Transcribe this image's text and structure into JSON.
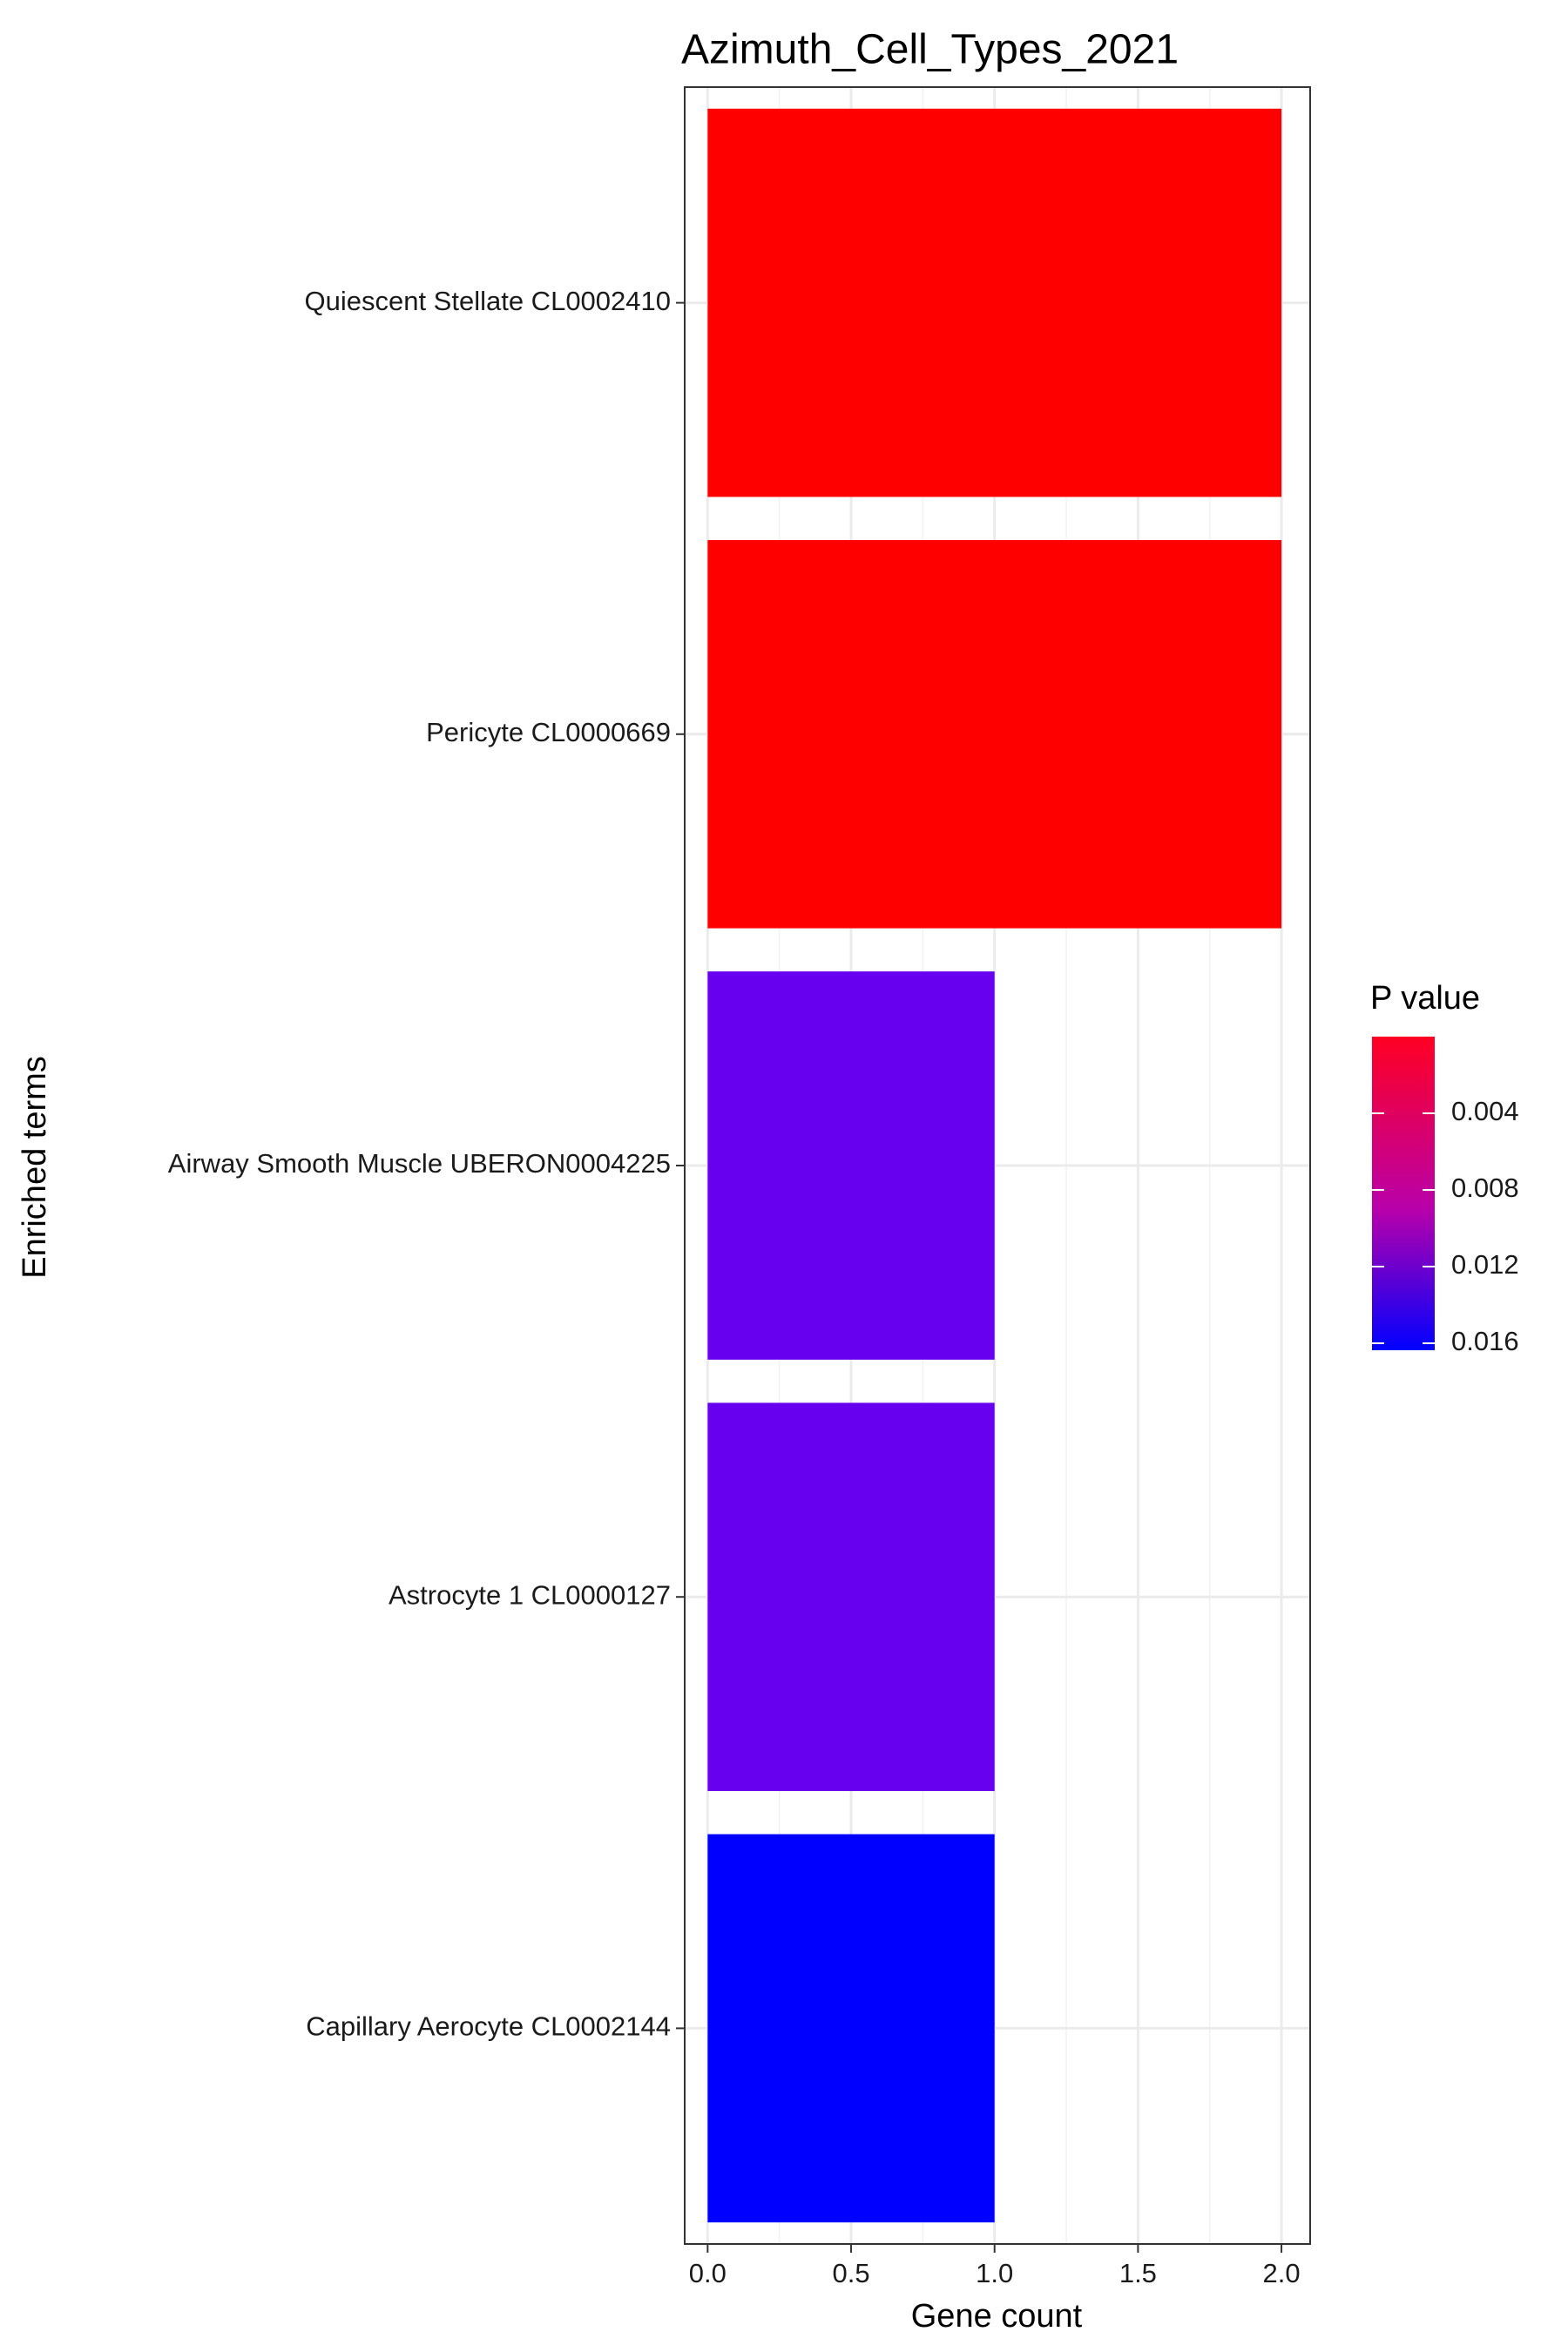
{
  "chart_data": {
    "type": "bar",
    "orientation": "horizontal",
    "title": "Azimuth_Cell_Types_2021",
    "xlabel": "Gene count",
    "ylabel": "Enriched terms",
    "xlim": [
      -0.08,
      2.1
    ],
    "xticks": [
      "0.0",
      "0.5",
      "1.0",
      "1.5",
      "2.0"
    ],
    "grid": true,
    "categories": [
      "Quiescent Stellate CL0002410",
      "Pericyte CL0000669",
      "Airway Smooth Muscle UBERON0004225",
      "Astrocyte 1 CL0000127",
      "Capillary Aerocyte CL0002144"
    ],
    "values": [
      2,
      2,
      1,
      1,
      1
    ],
    "bar_colors": [
      "#FF0000",
      "#FF0000",
      "#6600EE",
      "#6600EE",
      "#0000FF"
    ],
    "legend": {
      "title": "P value",
      "position": "right",
      "ticks": [
        "0.004",
        "0.008",
        "0.012",
        "0.016"
      ],
      "gradient_top": "#FF0022",
      "gradient_bottom": "#0000FF"
    }
  }
}
